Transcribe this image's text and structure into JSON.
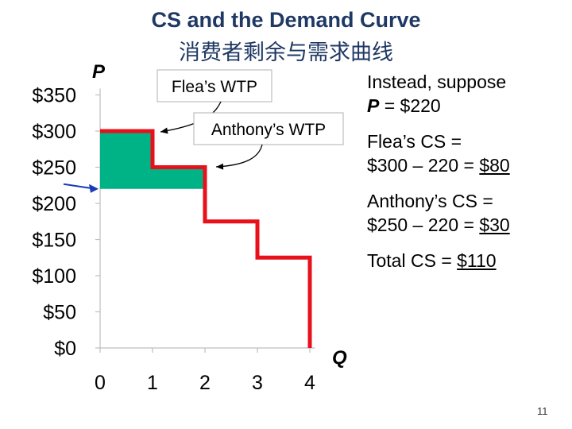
{
  "slide": {
    "title": "CS and the Demand Curve",
    "subtitle": "消费者剩余与需求曲线",
    "slide_number": "11"
  },
  "chart_data": {
    "type": "line",
    "y_axis_label": "P",
    "x_axis_label": "Q",
    "y_ticks": [
      "$0",
      "$50",
      "$100",
      "$150",
      "$200",
      "$250",
      "$300",
      "$350"
    ],
    "y_tick_values": [
      0,
      50,
      100,
      150,
      200,
      250,
      300,
      350
    ],
    "x_ticks": [
      "0",
      "1",
      "2",
      "3",
      "4"
    ],
    "x_tick_values": [
      0,
      1,
      2,
      3,
      4
    ],
    "xlim": [
      0,
      4.1
    ],
    "ylim": [
      0,
      350
    ],
    "demand_curve": {
      "x": [
        0,
        1,
        1,
        2,
        2,
        3,
        3,
        4,
        4
      ],
      "y": [
        300,
        300,
        250,
        250,
        175,
        175,
        125,
        125,
        0
      ],
      "color": "#e8111b"
    },
    "price_line": {
      "value": 220,
      "color": "#1a3ab8"
    },
    "consumer_surplus": {
      "color": "#00b386",
      "x": [
        0,
        1,
        1,
        2,
        2,
        0
      ],
      "y": [
        300,
        300,
        250,
        250,
        220,
        220
      ]
    },
    "callouts": [
      {
        "text": "Flea’s WTP",
        "points_to": {
          "x": 1,
          "y": 300
        }
      },
      {
        "text": "Anthony’s WTP",
        "points_to": {
          "x": 2,
          "y": 250
        }
      }
    ]
  },
  "notes": {
    "instead_line1": "Instead, suppose",
    "instead_p": "P",
    "instead_rest": " = $220",
    "flea_cs_label": "Flea’s CS =",
    "flea_cs_calc": "$300 – 220 = ",
    "flea_cs_value": "$80",
    "anthony_cs_label": "Anthony’s CS =",
    "anthony_cs_calc": "$250 – 220 = ",
    "anthony_cs_value": "$30",
    "total_cs_label": "Total CS = ",
    "total_cs_value": "$110"
  }
}
